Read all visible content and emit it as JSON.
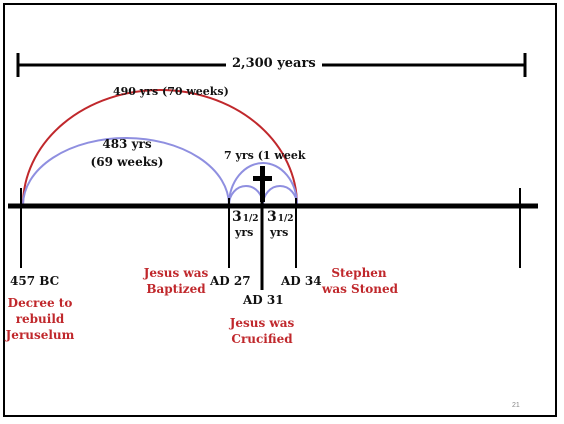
{
  "diagram": {
    "total_span": "2,300 years",
    "arc_490": "490 yrs (70 weeks)",
    "arc_483_line1": "483 yrs",
    "arc_483_line2": "(69 weeks)",
    "arc_7": "7 yrs (1 week",
    "half_left_num": "3",
    "half_left_frac": "1/2",
    "half_left_unit": "yrs",
    "half_right_num": "3",
    "half_right_frac": "1/2",
    "half_right_unit": "yrs",
    "events": {
      "bc457": "457 BC",
      "decree_line1": "Decree to",
      "decree_line2": "rebuild",
      "decree_line3": "Jeruselum",
      "baptized_line1": "Jesus was",
      "baptized_line2": "Baptized",
      "ad27": "AD 27",
      "ad31": "AD 31",
      "crucified_line1": "Jesus was",
      "crucified_line2": "Crucified",
      "ad34": "AD 34",
      "stoned_line1": "Stephen",
      "stoned_line2": "was Stoned"
    },
    "slide_number": "21",
    "colors": {
      "red": "#c0282c",
      "blue": "#8f8fe0",
      "line": "#000000"
    }
  }
}
